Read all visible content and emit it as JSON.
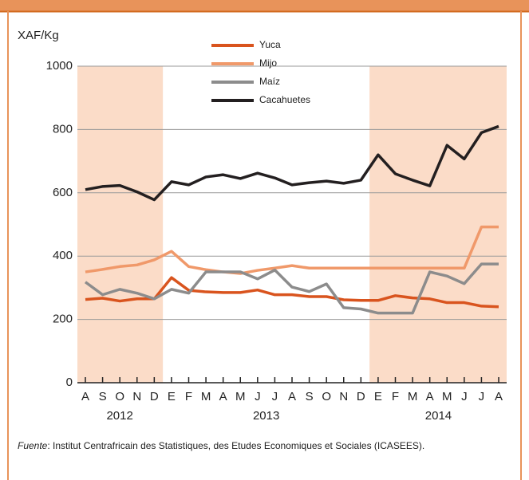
{
  "chart_data": {
    "type": "line",
    "y_label": "XAF/Kg",
    "categories": [
      "A",
      "S",
      "O",
      "N",
      "D",
      "E",
      "F",
      "M",
      "A",
      "M",
      "J",
      "J",
      "A",
      "S",
      "O",
      "N",
      "D",
      "E",
      "F",
      "M",
      "A",
      "M",
      "J",
      "J",
      "A"
    ],
    "years": [
      "2012",
      "2013",
      "2014"
    ],
    "ylim": [
      0,
      1000
    ],
    "yticks": [
      0,
      200,
      400,
      600,
      800,
      1000
    ],
    "grid": true,
    "series": [
      {
        "name": "Yuca",
        "color": "#d9541e",
        "values": [
          263,
          267,
          258,
          265,
          265,
          332,
          292,
          287,
          285,
          285,
          293,
          278,
          278,
          272,
          272,
          262,
          260,
          260,
          275,
          268,
          265,
          253,
          253,
          242,
          240
        ]
      },
      {
        "name": "Mijo",
        "color": "#f0996a",
        "values": [
          350,
          358,
          367,
          372,
          388,
          415,
          367,
          357,
          350,
          345,
          355,
          362,
          370,
          362,
          362,
          362,
          362,
          362,
          362,
          362,
          362,
          362,
          362,
          492,
          492
        ]
      },
      {
        "name": "Maíz",
        "color": "#8c8c8c",
        "values": [
          318,
          278,
          295,
          283,
          265,
          295,
          283,
          350,
          350,
          350,
          328,
          356,
          302,
          288,
          312,
          237,
          233,
          220,
          220,
          220,
          350,
          337,
          313,
          375,
          375
        ]
      },
      {
        "name": "Cacahuetes",
        "color": "#231f20",
        "values": [
          610,
          620,
          623,
          603,
          578,
          635,
          625,
          650,
          657,
          645,
          662,
          647,
          625,
          632,
          637,
          630,
          640,
          720,
          660,
          640,
          622,
          750,
          707,
          790,
          810
        ]
      }
    ],
    "source_label": "Fuente",
    "source": ": Institut Centrafricain des Statistiques, des Etudes Economiques et Sociales (ICASEES)."
  }
}
